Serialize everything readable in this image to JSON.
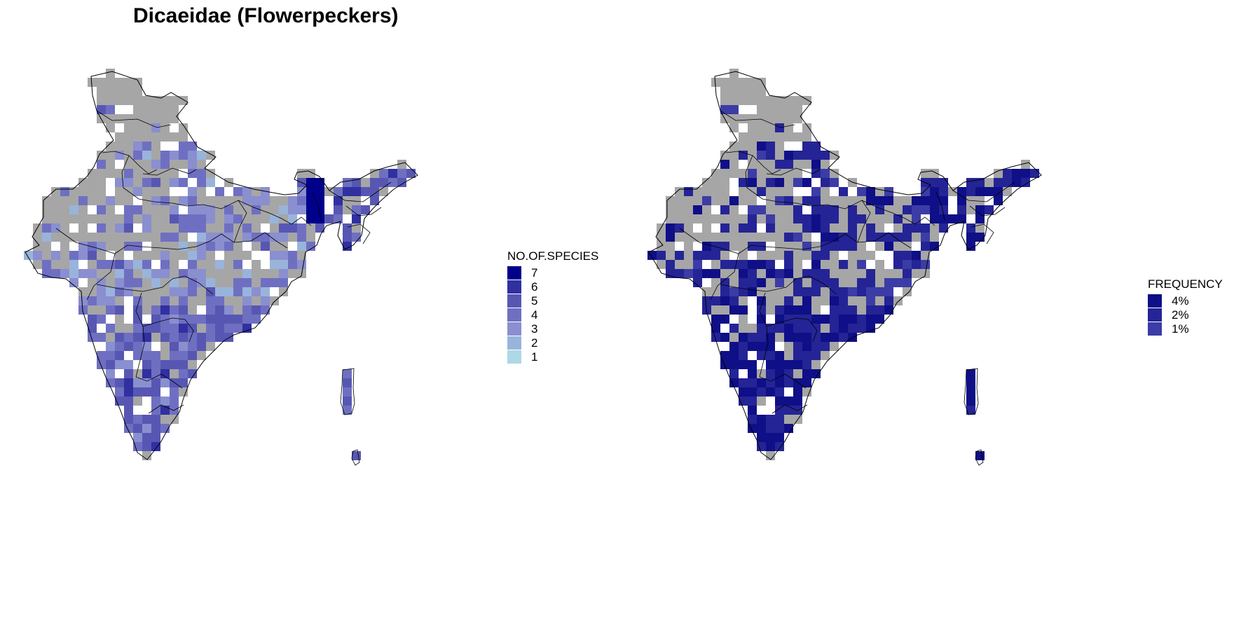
{
  "title": "Dicaeidae (Flowerpeckers)",
  "colors": {
    "no_data": "#a6a6a6",
    "outline": "#000000",
    "species_scale": [
      "#add8e6",
      "#99b4db",
      "#8a8fcf",
      "#6f6fc2",
      "#5757b3",
      "#3030a0",
      "#00008b"
    ],
    "frequency_scale": [
      "#3c3ca6",
      "#242496",
      "#0f0f87"
    ]
  },
  "legend_species": {
    "title": "NO.OF.SPECIES",
    "items": [
      {
        "label": "7",
        "color": "#00008b"
      },
      {
        "label": "6",
        "color": "#3030a0"
      },
      {
        "label": "5",
        "color": "#5757b3"
      },
      {
        "label": "4",
        "color": "#6f6fc2"
      },
      {
        "label": "3",
        "color": "#8a8fcf"
      },
      {
        "label": "2",
        "color": "#99b4db"
      },
      {
        "label": "1",
        "color": "#add8e6"
      }
    ]
  },
  "legend_frequency": {
    "title": "FREQUENCY",
    "items": [
      {
        "label": "4%",
        "color": "#0f0f87"
      },
      {
        "label": "2%",
        "color": "#242496"
      },
      {
        "label": "1%",
        "color": "#3c3ca6"
      }
    ]
  }
}
